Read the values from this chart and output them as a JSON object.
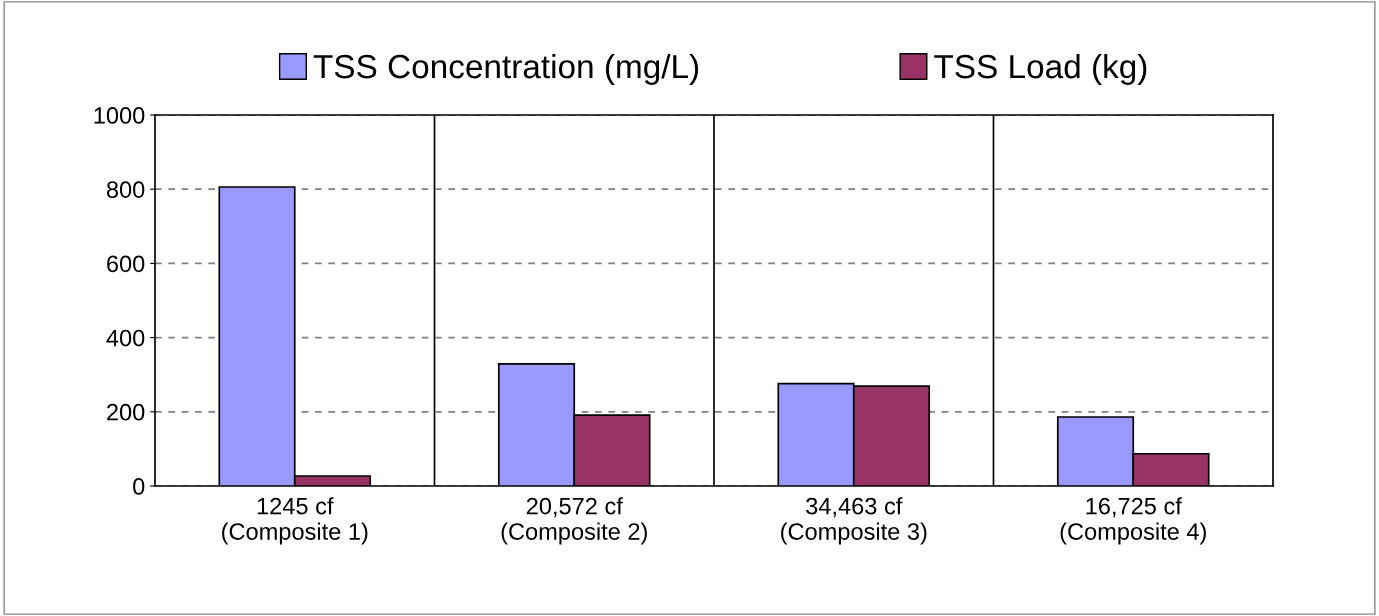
{
  "chart_data": {
    "type": "bar",
    "categories": [
      "1245 cf\n(Composite 1)",
      "20,572 cf\n(Composite 2)",
      "34,463 cf\n(Composite 3)",
      "16,725 cf\n(Composite 4)"
    ],
    "series": [
      {
        "name": "TSS Concentration (mg/L)",
        "color": "#9999ff",
        "values": [
          806,
          329,
          276,
          186
        ]
      },
      {
        "name": "TSS Load (kg)",
        "color": "#993366",
        "values": [
          27,
          191,
          269,
          87
        ]
      }
    ],
    "ylim": [
      0,
      1000
    ],
    "yticks": [
      0,
      200,
      400,
      600,
      800,
      1000
    ],
    "grid": true,
    "legend": "top"
  }
}
